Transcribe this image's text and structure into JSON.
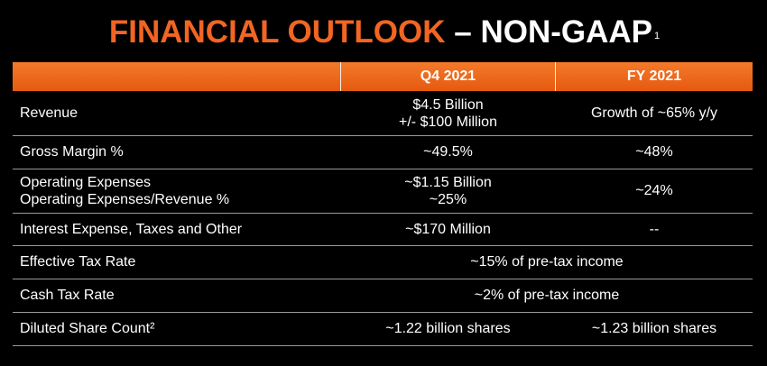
{
  "title": {
    "orange": "FINANCIAL OUTLOOK",
    "white": "– NON-GAAP",
    "footnote": "1"
  },
  "table": {
    "headers": [
      "",
      "Q4 2021",
      "FY 2021"
    ],
    "rows": [
      {
        "label": [
          "Revenue"
        ],
        "q4": [
          "$4.5 Billion",
          "+/- $100 Million"
        ],
        "fy": [
          "Growth of ~65% y/y"
        ]
      },
      {
        "label": [
          "Gross Margin %"
        ],
        "q4": [
          "~49.5%"
        ],
        "fy": [
          "~48%"
        ]
      },
      {
        "label": [
          "Operating Expenses",
          "Operating Expenses/Revenue %"
        ],
        "q4": [
          "~$1.15 Billion",
          "~25%"
        ],
        "fy": [
          "~24%"
        ]
      },
      {
        "label": [
          "Interest Expense, Taxes and Other"
        ],
        "q4": [
          "~$170 Million"
        ],
        "fy": [
          "--"
        ]
      },
      {
        "label": [
          "Effective Tax Rate"
        ],
        "span": "~15% of pre-tax income"
      },
      {
        "label": [
          "Cash Tax Rate"
        ],
        "span": "~2% of pre-tax income"
      },
      {
        "label": [
          "Diluted Share Count²"
        ],
        "q4": [
          "~1.22 billion shares"
        ],
        "fy": [
          "~1.23 billion shares"
        ]
      }
    ]
  },
  "colors": {
    "accent": "#f26522",
    "background": "#000000",
    "rule": "#9a9a9a"
  }
}
